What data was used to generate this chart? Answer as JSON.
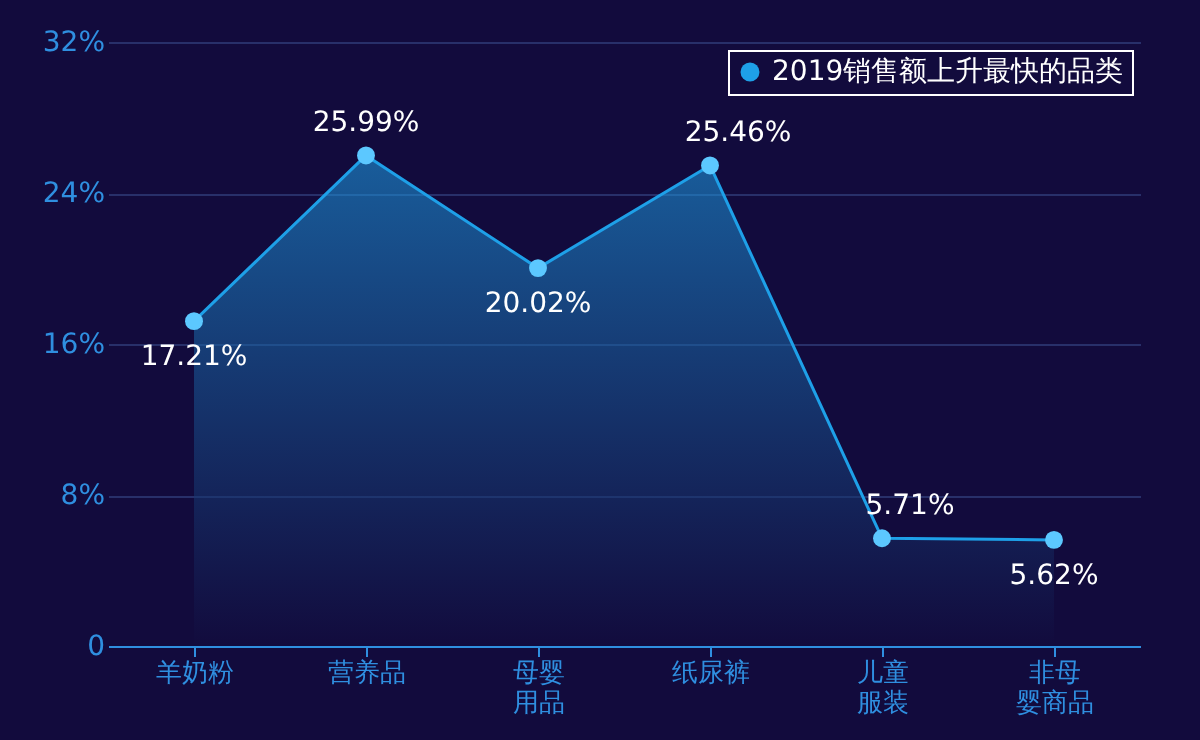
{
  "chart_data": {
    "type": "area",
    "categories": [
      "羊奶粉",
      "营养品",
      "母婴用品",
      "纸尿裤",
      "儿童服装",
      "非母婴商品"
    ],
    "series": [
      {
        "name": "2019销售额上升最快的品类",
        "color": "#1ea0e8",
        "values": [
          17.21,
          25.99,
          20.02,
          25.46,
          5.71,
          5.62
        ],
        "value_labels": [
          "17.21%",
          "25.99%",
          "20.02%",
          "25.46%",
          "5.71%",
          "5.62%"
        ]
      }
    ],
    "ylim": [
      0,
      32
    ],
    "yticks": [
      0,
      {
        "value": 8,
        "label": "8%"
      },
      {
        "value": 16,
        "label": "16%"
      },
      {
        "value": 24,
        "label": "24%"
      },
      {
        "value": 32,
        "label": "32%"
      }
    ],
    "grid": "y",
    "legend": "top right",
    "marker": "circle"
  }
}
